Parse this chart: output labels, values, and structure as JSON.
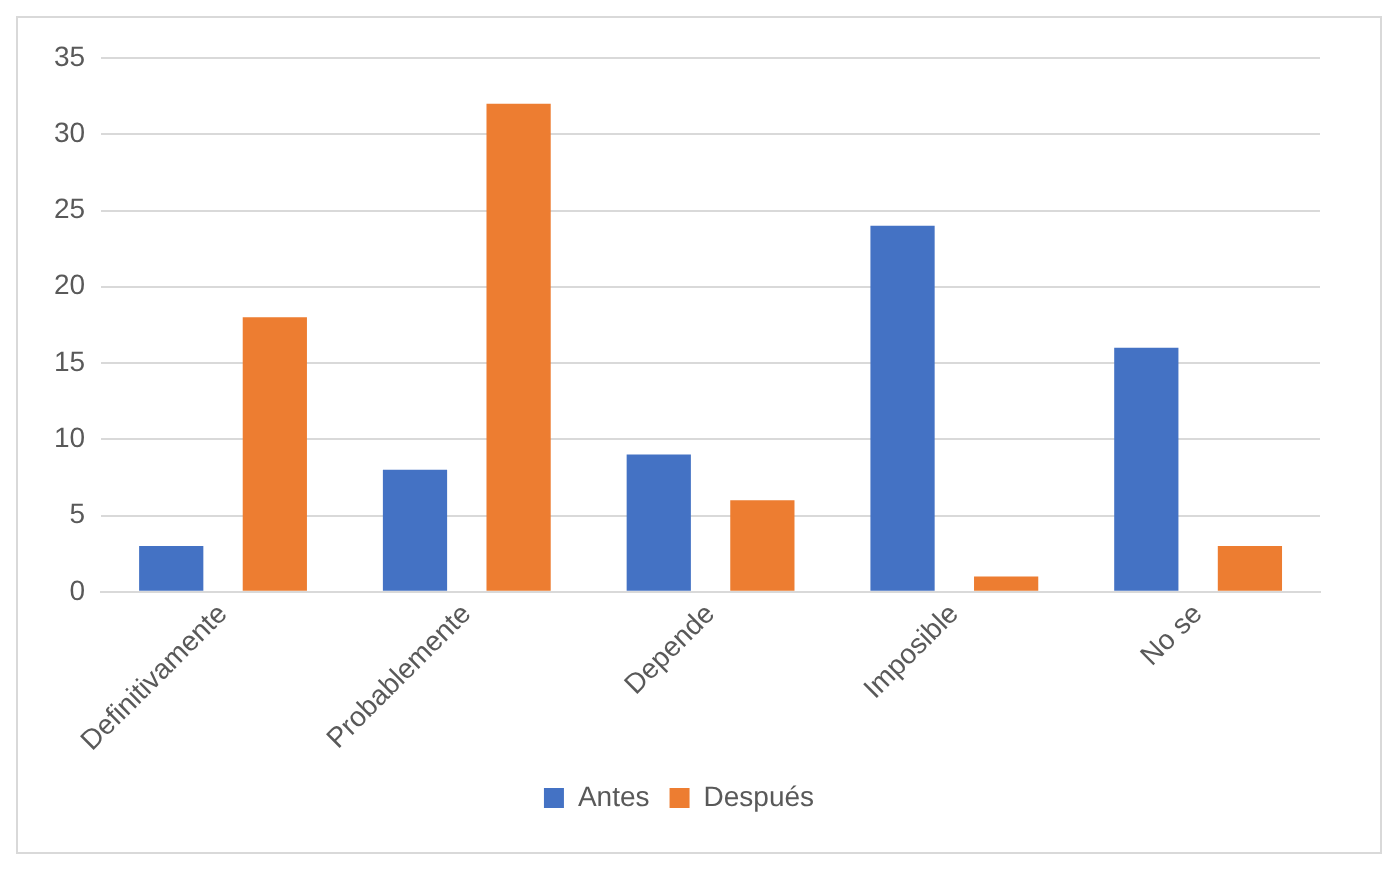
{
  "chart_data": {
    "type": "bar",
    "categories": [
      "Definitivamente",
      "Probablemente",
      "Depende",
      "Imposible",
      "No se"
    ],
    "series": [
      {
        "name": "Antes",
        "color": "#4472c4",
        "values": [
          3,
          8,
          9,
          24,
          16
        ]
      },
      {
        "name": "Después",
        "color": "#ed7d31",
        "values": [
          18,
          32,
          6,
          1,
          3
        ]
      }
    ],
    "ylim": [
      0,
      35
    ],
    "yticks": [
      0,
      5,
      10,
      15,
      20,
      25,
      30,
      35
    ],
    "grid": "y",
    "legend": "bottom"
  }
}
